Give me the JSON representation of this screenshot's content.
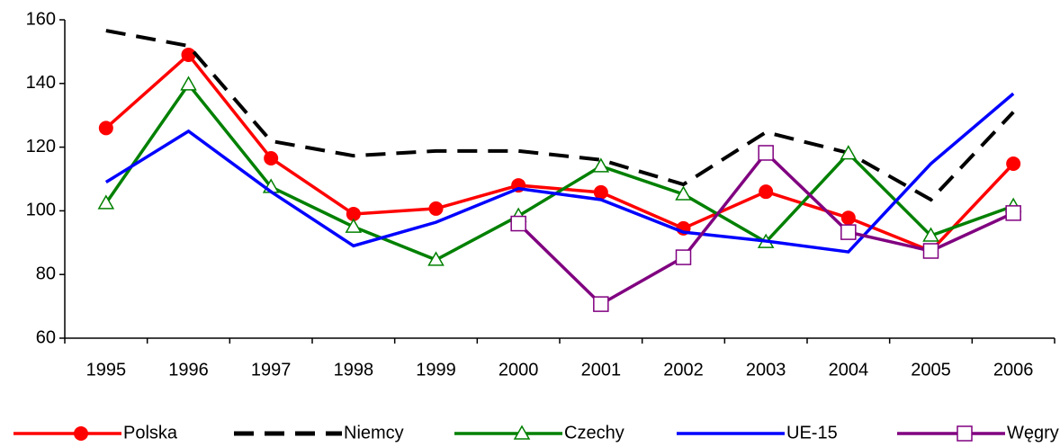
{
  "chart_data": {
    "type": "line",
    "categories": [
      "1995",
      "1996",
      "1997",
      "1998",
      "1999",
      "2000",
      "2001",
      "2002",
      "2003",
      "2004",
      "2005",
      "2006"
    ],
    "series": [
      {
        "name": "Polska",
        "color": "#ff0000",
        "marker": "circle",
        "values": [
          126,
          149,
          116.5,
          99,
          100.7,
          108,
          105.8,
          94.5,
          106,
          97.8,
          87.4,
          114.8
        ]
      },
      {
        "name": "Niemcy",
        "color": "#000000",
        "dash": true,
        "values": [
          156.6,
          151.8,
          121.9,
          117.3,
          118.8,
          118.8,
          116,
          108.3,
          124.7,
          118.2,
          103.5,
          131
        ]
      },
      {
        "name": "Czechy",
        "color": "#008000",
        "marker": "triangle",
        "values": [
          102.4,
          139.7,
          107.5,
          95,
          84.6,
          98.4,
          114,
          105.2,
          90.2,
          118,
          92.2,
          101.5
        ]
      },
      {
        "name": "UE-15",
        "color": "#0000ff",
        "values": [
          109,
          125,
          106,
          89,
          96.4,
          107,
          103.5,
          93.3,
          90.5,
          87.1,
          114.8,
          136.8
        ]
      },
      {
        "name": "Węgry",
        "color": "#800080",
        "marker": "square",
        "values": [
          null,
          null,
          null,
          null,
          null,
          96,
          70.7,
          85.4,
          118.2,
          93.3,
          87.4,
          99.3
        ]
      }
    ],
    "ylim": [
      60,
      160
    ],
    "yticks": [
      60,
      80,
      100,
      120,
      140,
      160
    ],
    "legend": "bottom"
  }
}
